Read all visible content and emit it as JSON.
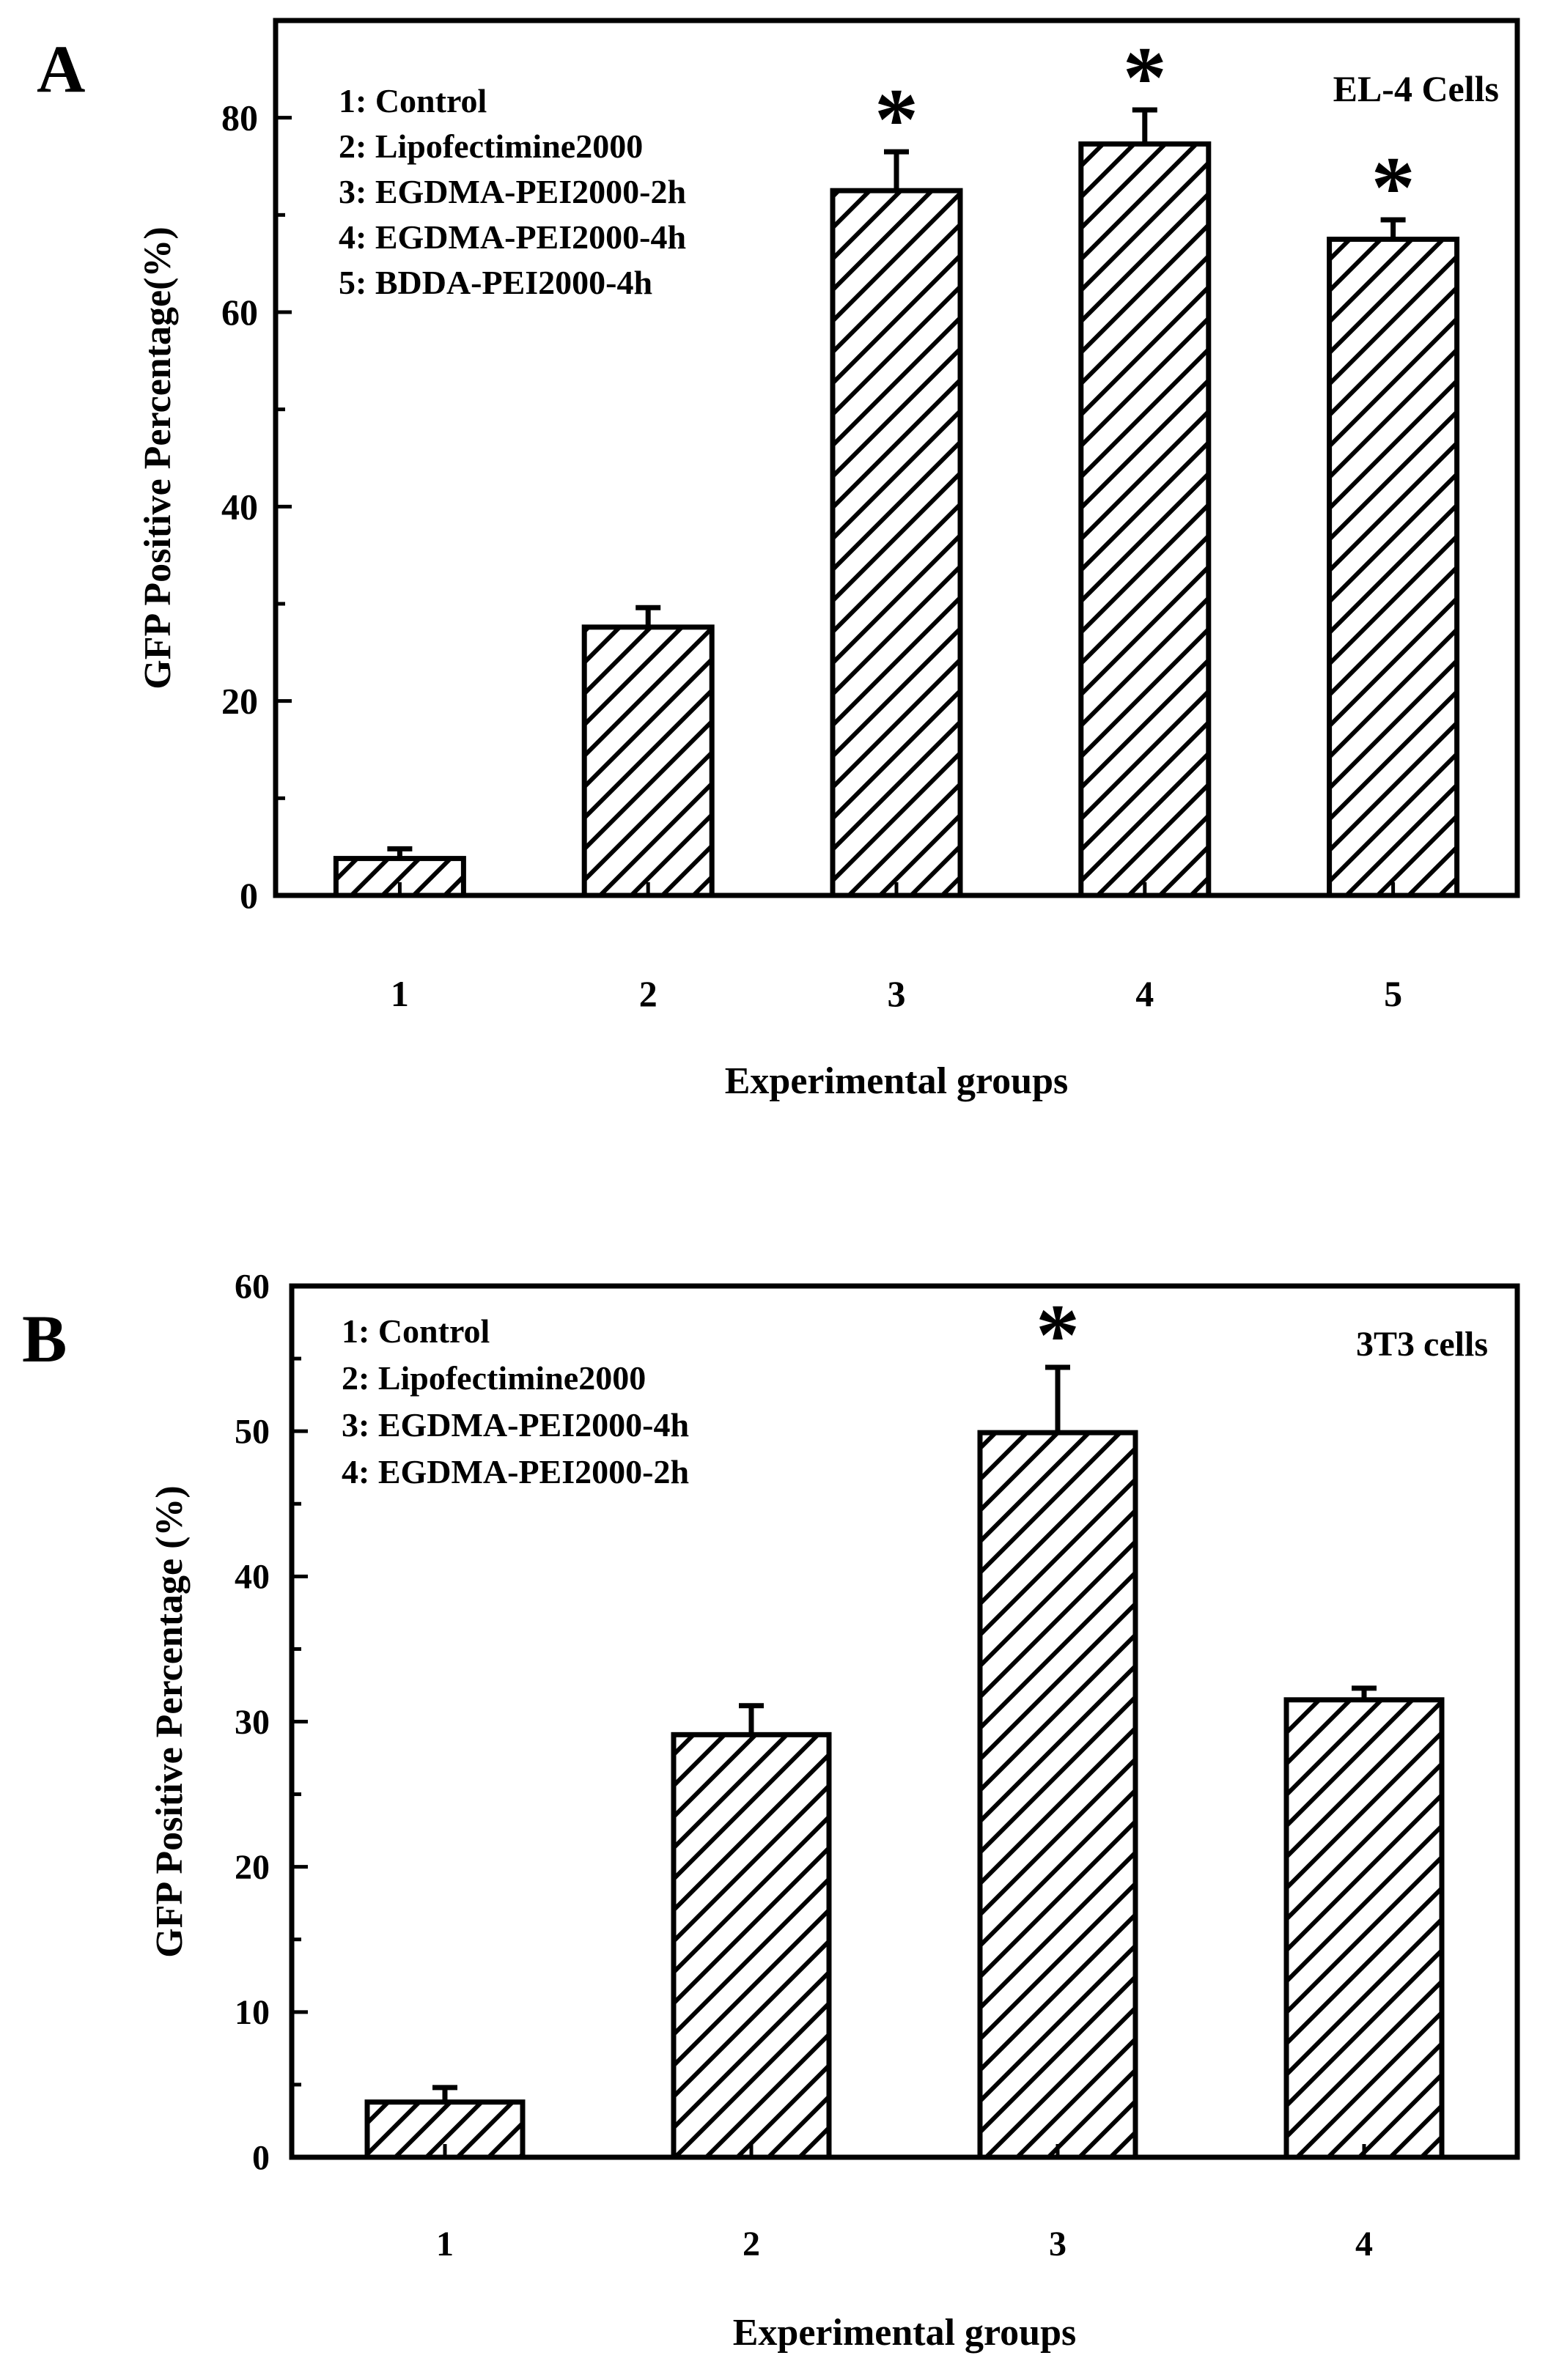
{
  "chart_data": [
    {
      "type": "bar",
      "panel_label": "A",
      "title": "EL-4 Cells",
      "xlabel": "Experimental groups",
      "ylabel": "GFP Positive Percentage(%)",
      "categories": [
        "1",
        "2",
        "3",
        "4",
        "5"
      ],
      "values": [
        3.8,
        27.6,
        72.5,
        77.3,
        67.5
      ],
      "errors": [
        1.0,
        2.0,
        4.0,
        3.5,
        2.0
      ],
      "significant": [
        false,
        false,
        true,
        true,
        true
      ],
      "significance_marker": "*",
      "ylim": [
        0,
        90
      ],
      "yticks": [
        0,
        20,
        40,
        60,
        80
      ],
      "yminor_step": 10,
      "legend": [
        "1: Control",
        "2: Lipofectimine2000",
        "3: EGDMA-PEI2000-2h",
        "4: EGDMA-PEI2000-4h",
        "5: BDDA-PEI2000-4h"
      ],
      "legend_position": "top-left",
      "grid": false,
      "fill": "diagonal-hatch"
    },
    {
      "type": "bar",
      "panel_label": "B",
      "title": "3T3 cells",
      "xlabel": "Experimental groups",
      "ylabel": "GFP Positive Percentage (%)",
      "categories": [
        "1",
        "2",
        "3",
        "4"
      ],
      "values": [
        3.8,
        29.1,
        49.9,
        31.5
      ],
      "errors": [
        1.0,
        2.0,
        4.5,
        0.8
      ],
      "significant": [
        false,
        false,
        true,
        false
      ],
      "significance_marker": "*",
      "ylim": [
        0,
        60
      ],
      "yticks": [
        0,
        10,
        20,
        30,
        40,
        50,
        60
      ],
      "yminor_step": 5,
      "legend": [
        "1: Control",
        "2: Lipofectimine2000",
        "3: EGDMA-PEI2000-4h",
        "4: EGDMA-PEI2000-2h"
      ],
      "legend_position": "top-left",
      "grid": false,
      "fill": "diagonal-hatch"
    }
  ]
}
